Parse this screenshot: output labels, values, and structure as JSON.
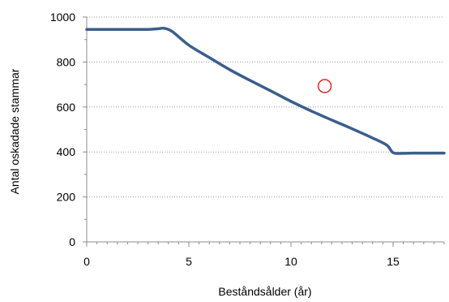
{
  "chart_data": {
    "type": "line",
    "title": "",
    "xlabel": "Beståndsålder (år)",
    "ylabel": "Antal oskadade stammar",
    "xlim": [
      0,
      17.5
    ],
    "ylim": [
      0,
      1000
    ],
    "x_ticks": [
      "0",
      "5",
      "10",
      "15"
    ],
    "y_ticks": [
      "0",
      "200",
      "400",
      "600",
      "800",
      "1000"
    ],
    "grid": "horizontal dotted",
    "legend": "none",
    "series": [
      {
        "color": "#3b5e8c",
        "points": [
          [
            0,
            945
          ],
          [
            1,
            945
          ],
          [
            2,
            945
          ],
          [
            3,
            945
          ],
          [
            3.5,
            948
          ],
          [
            3.8,
            950
          ],
          [
            4.2,
            935
          ],
          [
            5,
            875
          ],
          [
            6,
            820
          ],
          [
            7,
            766
          ],
          [
            8,
            718
          ],
          [
            9,
            672
          ],
          [
            10,
            625
          ],
          [
            11,
            582
          ],
          [
            12,
            542
          ],
          [
            13,
            503
          ],
          [
            14,
            462
          ],
          [
            14.7,
            430
          ],
          [
            15,
            397
          ],
          [
            15.5,
            394
          ],
          [
            16,
            395
          ],
          [
            17.5,
            395
          ]
        ]
      }
    ],
    "annotation": {
      "shape": "circle",
      "x": 11.65,
      "y": 693,
      "color": "#d62c2c"
    }
  }
}
